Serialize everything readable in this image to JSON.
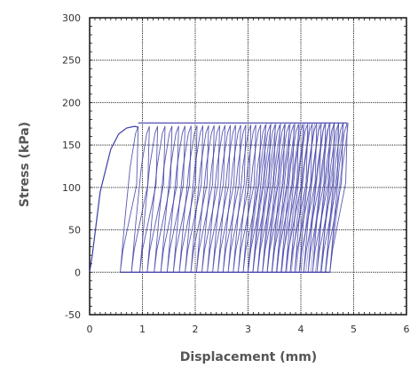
{
  "chart_data": {
    "type": "line",
    "title": "",
    "xlabel": "Displacement (mm)",
    "ylabel": "Stress (kPa)",
    "xlim": [
      0,
      6
    ],
    "ylim": [
      -50,
      300
    ],
    "xticks": [
      0,
      1,
      2,
      3,
      4,
      5,
      6
    ],
    "yticks": [
      -50,
      0,
      50,
      100,
      150,
      200,
      250,
      300
    ],
    "grid": true,
    "legend": "none",
    "series_color": "#3c3ca8",
    "series": [
      {
        "description_free": true,
        "initial_loading": [
          [
            0.0,
            0
          ],
          [
            0.05,
            20
          ],
          [
            0.12,
            55
          ],
          [
            0.2,
            95
          ],
          [
            0.3,
            120
          ],
          [
            0.4,
            145
          ],
          [
            0.55,
            163
          ],
          [
            0.7,
            170
          ],
          [
            0.85,
            172
          ],
          [
            0.92,
            171
          ]
        ],
        "cycles": {
          "count": 40,
          "first_reload_x": 0.58,
          "last_reload_x": 4.55,
          "first_peak_x": 0.92,
          "last_peak_x": 4.88,
          "peak_stress": 176,
          "min_stress": 0
        }
      }
    ]
  }
}
